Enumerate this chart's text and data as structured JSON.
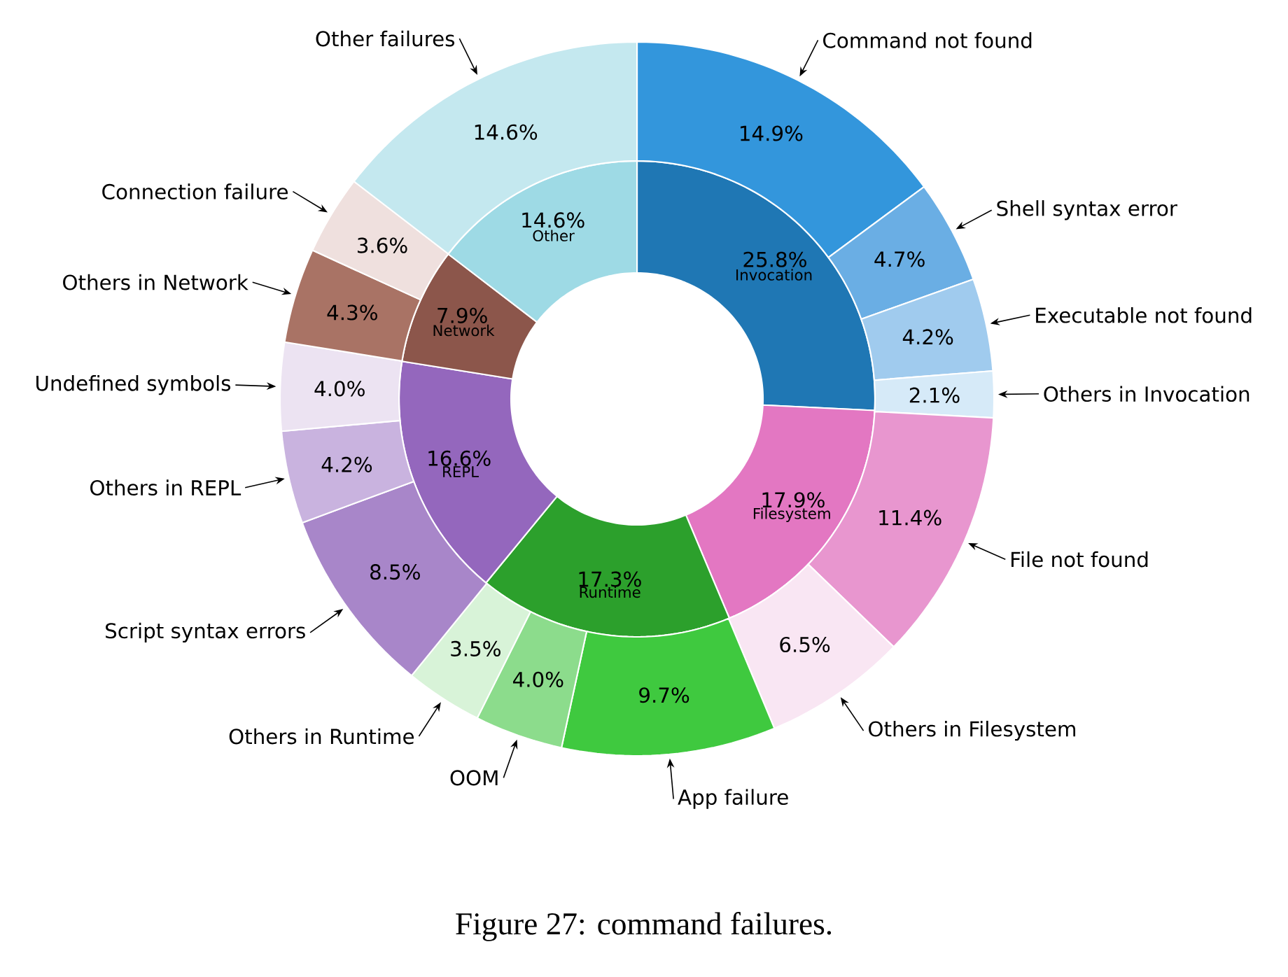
{
  "chart_data": [
    {
      "type": "donut",
      "title": "Figure 27: command failures.",
      "categories": [
        "Invocation",
        "Filesystem",
        "Runtime",
        "REPL",
        "Network",
        "Other"
      ],
      "values": [
        25.8,
        17.9,
        17.3,
        16.6,
        7.9,
        14.6
      ],
      "value_labels": [
        "25.8%",
        "17.9%",
        "17.3%",
        "16.6%",
        "7.9%",
        "14.6%"
      ],
      "colors": [
        "#1f77b4",
        "#e377c2",
        "#2ca02c",
        "#9467bd",
        "#8c564b",
        "#9edae5"
      ]
    },
    {
      "type": "donut",
      "categories": [
        "Command not found",
        "Shell syntax error",
        "Executable not found",
        "Others in Invocation",
        "File not found",
        "Others in Filesystem",
        "App failure",
        "OOM",
        "Others in Runtime",
        "Script syntax errors",
        "Others in REPL",
        "Undefined symbols",
        "Others in Network",
        "Connection failure",
        "Other failures"
      ],
      "values": [
        14.9,
        4.7,
        4.2,
        2.1,
        11.4,
        6.5,
        9.7,
        4.0,
        3.5,
        8.5,
        4.2,
        4.0,
        4.3,
        3.6,
        14.6
      ],
      "value_labels": [
        "14.9%",
        "4.7%",
        "4.2%",
        "2.1%",
        "11.4%",
        "6.5%",
        "9.7%",
        "4.0%",
        "3.5%",
        "8.5%",
        "4.2%",
        "4.0%",
        "4.3%",
        "3.6%",
        "14.6%"
      ],
      "colors": [
        "#3396dc",
        "#6aaee4",
        "#a0cbee",
        "#d6eaf8",
        "#e896cf",
        "#f9e6f3",
        "#3fc93f",
        "#8cdc8c",
        "#d8f3d8",
        "#a886c9",
        "#c9b3df",
        "#ece3f2",
        "#a97365",
        "#efe0de",
        "#c4e8ef"
      ]
    }
  ]
}
